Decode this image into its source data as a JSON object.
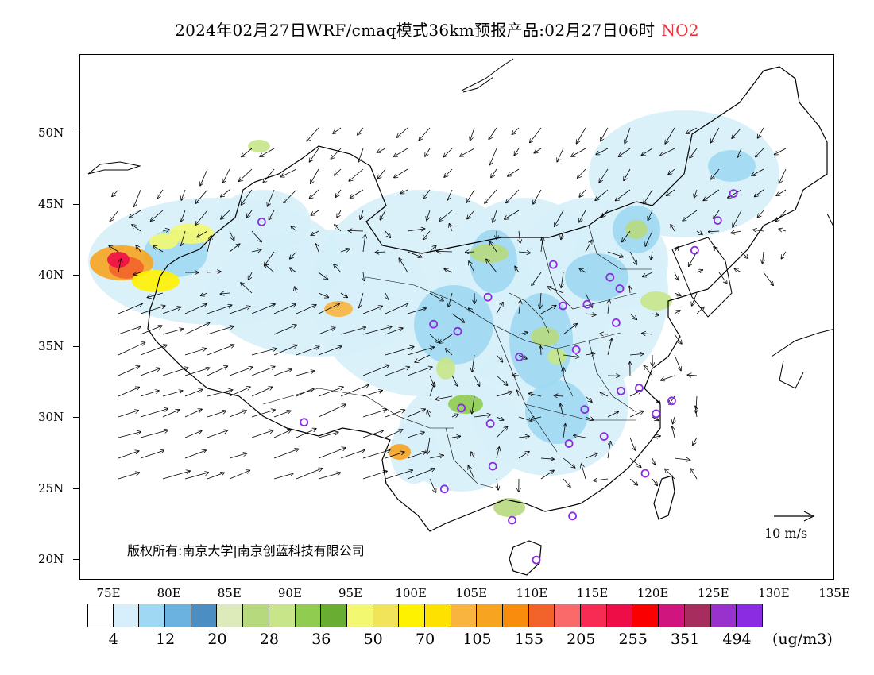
{
  "title": {
    "main": "2024年02月27日WRF/cmaq模式36km预报产品:02月27日06时",
    "pollutant": "NO2"
  },
  "colors": {
    "pollutant_title": "#e8343b",
    "station_marker": "#8a2be2",
    "boundary": "#000000"
  },
  "axes": {
    "latitude_labels": [
      "50N",
      "45N",
      "40N",
      "35N",
      "30N",
      "25N",
      "20N"
    ],
    "longitude_labels": [
      "75E",
      "80E",
      "85E",
      "90E",
      "95E",
      "100E",
      "105E",
      "110E",
      "115E",
      "120E",
      "125E",
      "130E",
      "135E"
    ]
  },
  "copyright": "版权所有:南京大学|南京创蓝科技有限公司",
  "wind_scale": {
    "label": "10 m/s",
    "icon": "arrow-right-icon"
  },
  "colorbar": {
    "unit": "(ug/m3)",
    "colors": [
      "#ffffff",
      "#d6effa",
      "#9ed8f2",
      "#6cb2e0",
      "#4a8ec4",
      "#dcebb9",
      "#b7d97d",
      "#c8e58a",
      "#8fcc4f",
      "#6aad33",
      "#f2f870",
      "#f1e45a",
      "#fff200",
      "#ffe100",
      "#f8b43e",
      "#f7a421",
      "#f98b0d",
      "#f2632b",
      "#fb6a6a",
      "#f72b53",
      "#ef0d48",
      "#fb0000",
      "#d1157e",
      "#a72d5f",
      "#9932cc",
      "#8b2be2"
    ],
    "labels": [
      "4",
      "12",
      "20",
      "28",
      "36",
      "50",
      "70",
      "105",
      "155",
      "205",
      "255",
      "351",
      "494"
    ]
  },
  "map_data": {
    "stations": [
      [
        87.6,
        43.8
      ],
      [
        91.1,
        29.7
      ],
      [
        101.8,
        36.6
      ],
      [
        103.8,
        36.1
      ],
      [
        106.3,
        38.5
      ],
      [
        104.1,
        30.7
      ],
      [
        106.5,
        29.6
      ],
      [
        106.7,
        26.6
      ],
      [
        102.7,
        25.0
      ],
      [
        108.3,
        22.8
      ],
      [
        110.3,
        20.0
      ],
      [
        111.7,
        40.8
      ],
      [
        112.5,
        37.9
      ],
      [
        114.5,
        38.0
      ],
      [
        116.4,
        39.9
      ],
      [
        117.2,
        39.1
      ],
      [
        116.9,
        36.7
      ],
      [
        113.6,
        34.8
      ],
      [
        108.9,
        34.3
      ],
      [
        114.3,
        30.6
      ],
      [
        113.0,
        28.2
      ],
      [
        115.9,
        28.7
      ],
      [
        117.3,
        31.9
      ],
      [
        118.8,
        32.1
      ],
      [
        120.2,
        30.3
      ],
      [
        121.5,
        31.2
      ],
      [
        119.3,
        26.1
      ],
      [
        113.3,
        23.1
      ],
      [
        123.4,
        41.8
      ],
      [
        125.3,
        43.9
      ],
      [
        126.6,
        45.8
      ]
    ]
  }
}
